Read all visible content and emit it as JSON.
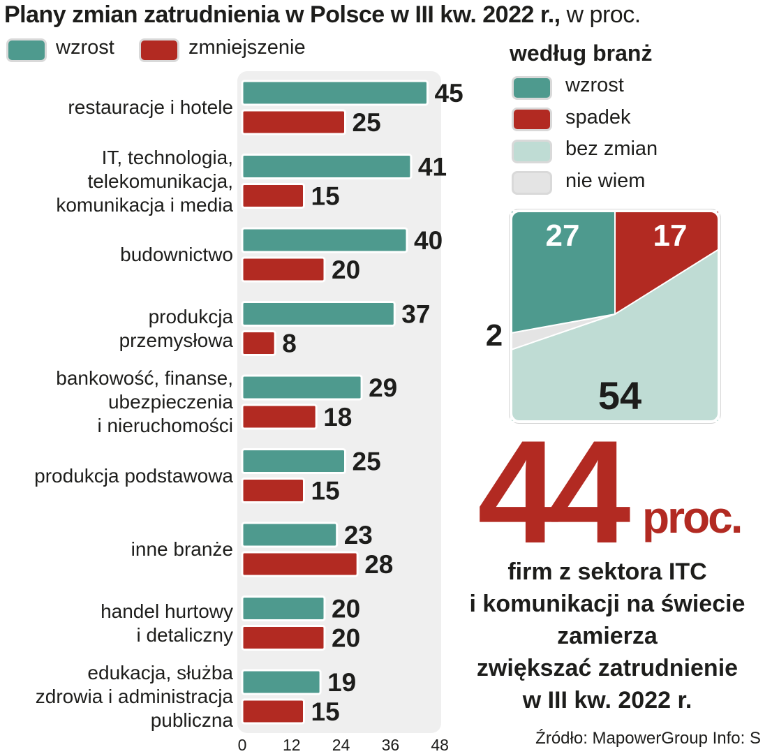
{
  "title": {
    "bold": "Plany zmian zatrudnienia w Polsce w III kw. 2022 r.,",
    "unit": " w proc."
  },
  "colors": {
    "increase": "#4e9a8e",
    "decrease": "#b22a22",
    "no_change": "#bfdcd4",
    "dont_know": "#e4e4e4",
    "panel": "#efefef"
  },
  "chart_data": [
    {
      "type": "bar",
      "orientation": "horizontal",
      "categories": [
        "restauracje i hotele",
        "IT, technologia, telekomunikacja, komunikacja i media",
        "budownictwo",
        "produkcja przemysłowa",
        "bankowość, finanse, ubezpieczenia i nieruchomości",
        "produkcja podstawowa",
        "inne branże",
        "handel hurtowy i detaliczny",
        "edukacja, służba zdrowia i administracja publiczna"
      ],
      "category_lines": [
        [
          "restauracje i hotele"
        ],
        [
          "IT, technologia,",
          "telekomunikacja,",
          "komunikacja i media"
        ],
        [
          "budownictwo"
        ],
        [
          "produkcja",
          "przemysłowa"
        ],
        [
          "bankowość, finanse,",
          "ubezpieczenia",
          "i nieruchomości"
        ],
        [
          "produkcja podstawowa"
        ],
        [
          "inne branże"
        ],
        [
          "handel hurtowy",
          "i detaliczny"
        ],
        [
          "edukacja, służba",
          "zdrowia i administracja",
          "publiczna"
        ]
      ],
      "series": [
        {
          "name": "wzrost",
          "values": [
            45,
            41,
            40,
            37,
            29,
            25,
            23,
            20,
            19
          ]
        },
        {
          "name": "zmniejszenie",
          "values": [
            25,
            15,
            20,
            8,
            18,
            15,
            28,
            20,
            15
          ]
        }
      ],
      "xticks": [
        "0",
        "12",
        "24",
        "36",
        "48"
      ],
      "xlim": [
        0,
        48
      ],
      "unit": "proc."
    },
    {
      "type": "pie",
      "title": "według branż",
      "labels": [
        "wzrost",
        "spadek",
        "bez zmian",
        "nie wiem"
      ],
      "values": [
        27,
        17,
        54,
        2
      ]
    }
  ],
  "legend_left": [
    {
      "label": "wzrost",
      "color": "#4e9a8e"
    },
    {
      "label": "zmniejszenie",
      "color": "#b22a22"
    }
  ],
  "legend_right": [
    {
      "label": "wzrost",
      "color": "#4e9a8e"
    },
    {
      "label": "spadek",
      "color": "#b22a22"
    },
    {
      "label": "bez zmian",
      "color": "#bfdcd4"
    },
    {
      "label": "nie wiem",
      "color": "#e4e4e4"
    }
  ],
  "highlight": {
    "number": "44",
    "unit": "proc.",
    "lines": [
      "firm z sektora ITC",
      "i komunikacji na świecie",
      "zamierza",
      "zwiększać zatrudnienie",
      "w III kw. 2022 r."
    ]
  },
  "source": "Źródło: MapowerGroup  Info: S"
}
